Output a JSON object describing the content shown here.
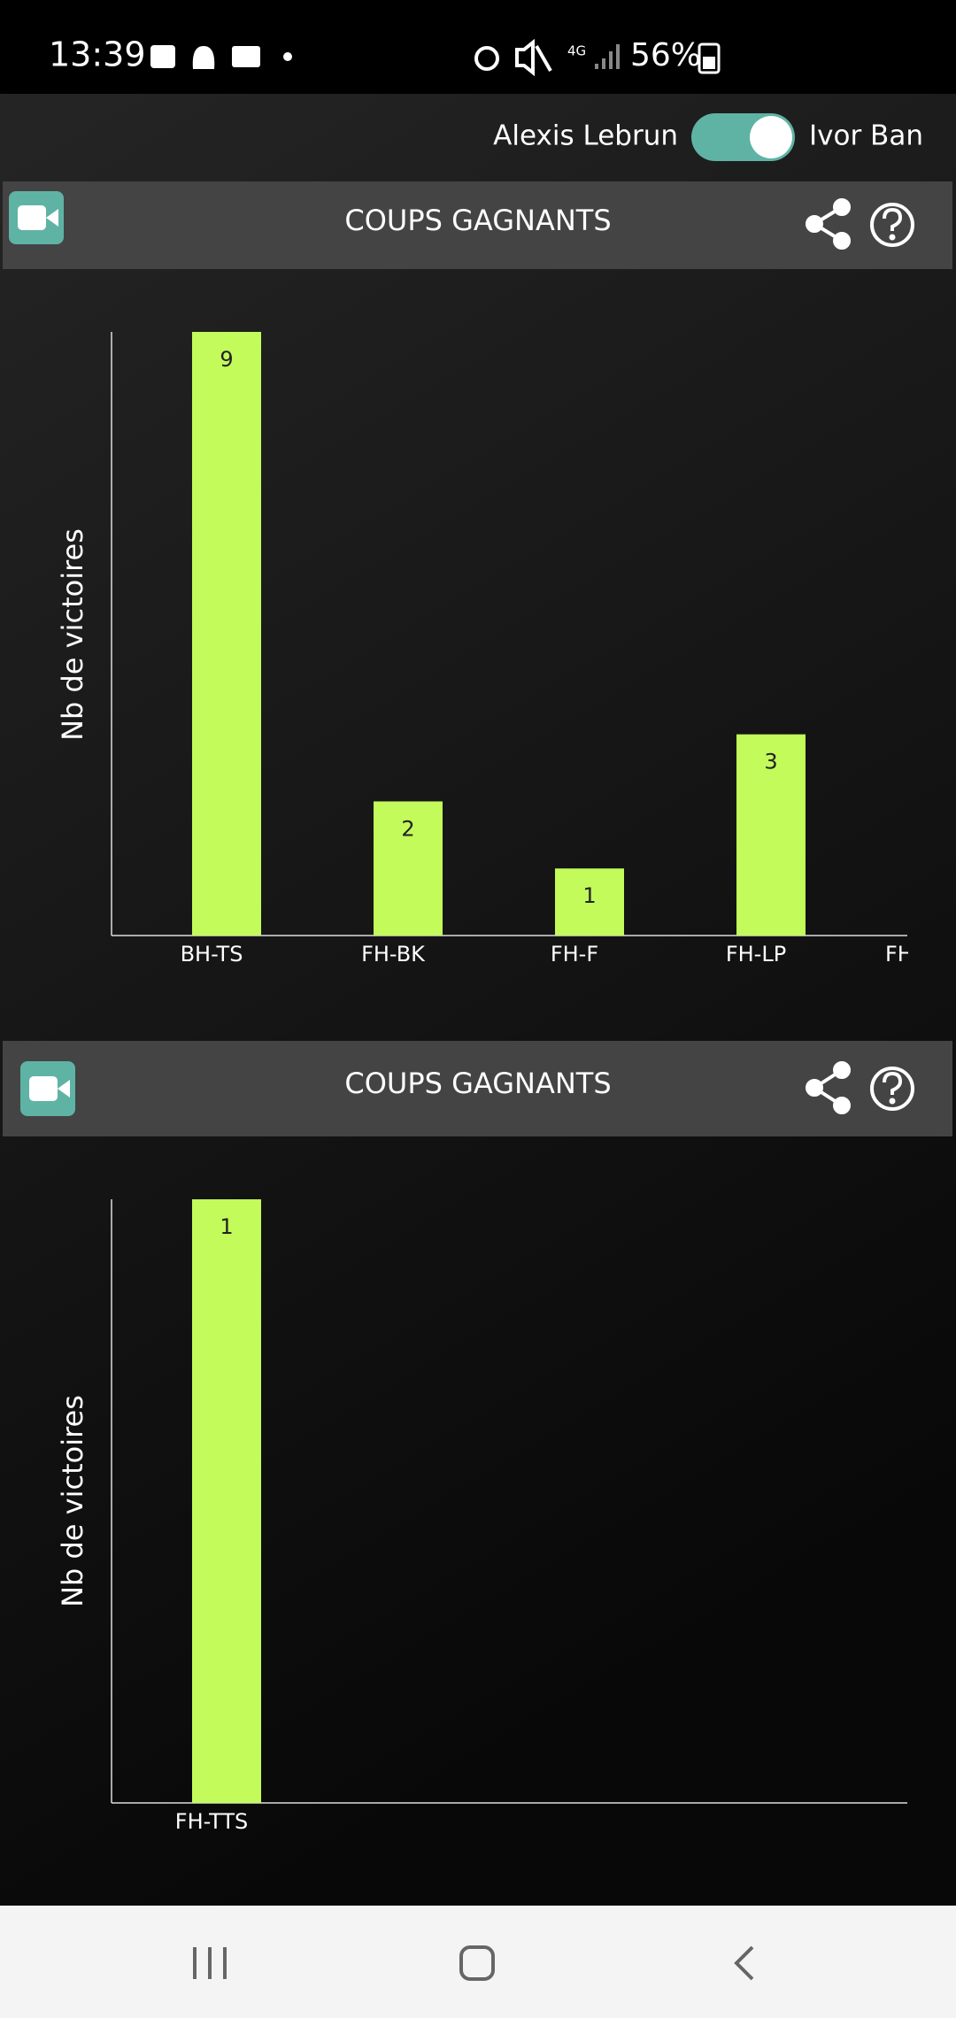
{
  "status_bar": {
    "time": "13:39",
    "network": "4G",
    "battery": "56%"
  },
  "toggle": {
    "left": "Alexis Lebrun",
    "right": "Ivor Ban"
  },
  "chart_data": [
    {
      "type": "bar",
      "title": "COUPS GAGNANTS",
      "y_label": "Nb de victoires",
      "categories": [
        "BH-TS",
        "FH-BK",
        "FH-F",
        "FH-LP",
        "FH"
      ],
      "values": [
        9,
        2,
        1,
        3,
        null
      ],
      "ylim": [
        0,
        9
      ],
      "color": "#c2fb5a"
    },
    {
      "type": "bar",
      "title": "COUPS GAGNANTS",
      "y_label": "Nb de victoires",
      "categories": [
        "FH-TTS"
      ],
      "values": [
        1
      ],
      "ylim": [
        0,
        1
      ],
      "color": "#c2fb5a"
    }
  ]
}
